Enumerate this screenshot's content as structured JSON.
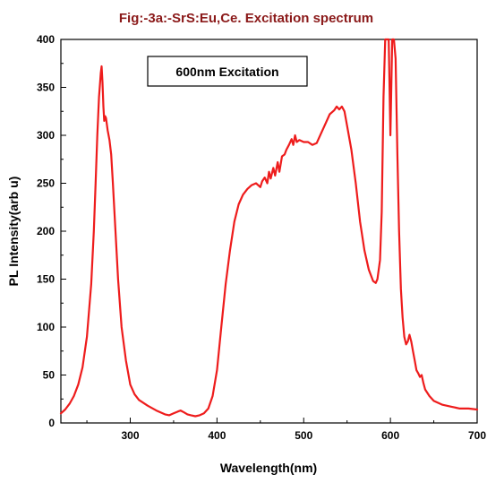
{
  "chart_data": {
    "type": "line",
    "title": "Fig:-3a:-SrS:Eu,Ce. Excitation spectrum",
    "xlabel": "Wavelength(nm)",
    "ylabel": "PL Intensity(arb u)",
    "annotation": "600nm Excitation",
    "xlim": [
      220,
      700
    ],
    "ylim": [
      0,
      400
    ],
    "xticks": [
      300,
      400,
      500,
      600,
      700
    ],
    "yticks": [
      0,
      50,
      100,
      150,
      200,
      250,
      300,
      350,
      400
    ],
    "grid": false,
    "colors": {
      "line": "#ee1c1c",
      "title": "#8b1a1a",
      "axis": "#000000"
    },
    "series": [
      {
        "x": [
          220,
          225,
          230,
          235,
          240,
          245,
          250,
          255,
          258,
          260,
          262,
          264,
          266,
          267,
          268,
          269,
          270,
          271,
          272,
          274,
          276,
          278,
          280,
          283,
          286,
          290,
          295,
          300,
          305,
          310,
          320,
          330,
          340,
          345,
          350,
          355,
          358,
          362,
          366,
          370,
          375,
          380,
          385,
          390,
          395,
          400,
          405,
          410,
          415,
          420,
          425,
          430,
          435,
          440,
          445,
          450,
          452,
          455,
          458,
          460,
          462,
          465,
          467,
          470,
          472,
          475,
          478,
          480,
          483,
          486,
          488,
          490,
          492,
          495,
          500,
          505,
          510,
          515,
          520,
          525,
          530,
          535,
          538,
          541,
          544,
          547,
          550,
          555,
          560,
          565,
          570,
          575,
          580,
          583,
          585,
          588,
          590,
          592,
          594,
          596,
          598,
          600,
          602,
          604,
          606,
          608,
          610,
          612,
          614,
          616,
          618,
          620,
          622,
          624,
          626,
          628,
          630,
          632,
          634,
          636,
          638,
          640,
          645,
          650,
          660,
          670,
          680,
          690,
          700
        ],
        "y": [
          10,
          14,
          20,
          28,
          40,
          58,
          90,
          145,
          200,
          250,
          300,
          340,
          365,
          372,
          355,
          330,
          315,
          320,
          318,
          305,
          295,
          280,
          250,
          200,
          150,
          100,
          65,
          40,
          30,
          24,
          18,
          13,
          9,
          8,
          10,
          12,
          13,
          11,
          9,
          8,
          7,
          8,
          10,
          15,
          28,
          55,
          100,
          145,
          180,
          210,
          228,
          238,
          244,
          248,
          250,
          246,
          252,
          256,
          250,
          262,
          255,
          266,
          258,
          272,
          262,
          278,
          280,
          285,
          290,
          296,
          290,
          300,
          293,
          295,
          293,
          293,
          290,
          292,
          302,
          312,
          322,
          326,
          330,
          327,
          330,
          325,
          310,
          285,
          250,
          210,
          180,
          160,
          148,
          146,
          150,
          170,
          220,
          340,
          400,
          400,
          400,
          300,
          400,
          400,
          380,
          280,
          200,
          140,
          110,
          90,
          82,
          85,
          92,
          85,
          75,
          65,
          55,
          52,
          48,
          50,
          42,
          35,
          28,
          23,
          19,
          17,
          15,
          15,
          14
        ]
      }
    ]
  }
}
